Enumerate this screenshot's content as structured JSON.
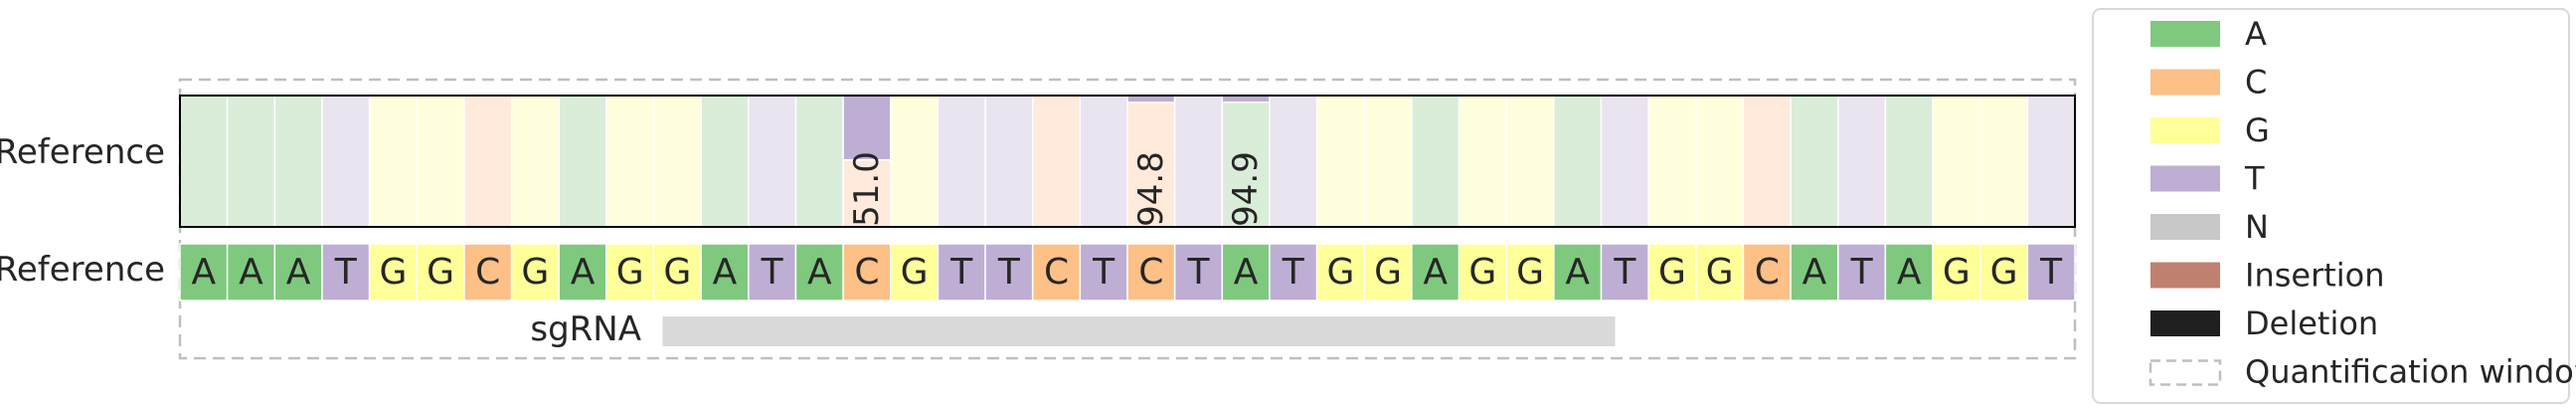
{
  "chart_data": {
    "type": "heatmap",
    "row_labels": [
      "Reference",
      "Reference"
    ],
    "sequence": [
      "A",
      "A",
      "A",
      "T",
      "G",
      "G",
      "C",
      "G",
      "A",
      "G",
      "G",
      "A",
      "T",
      "A",
      "C",
      "G",
      "T",
      "T",
      "C",
      "T",
      "C",
      "T",
      "A",
      "T",
      "G",
      "G",
      "A",
      "G",
      "G",
      "A",
      "T",
      "G",
      "G",
      "C",
      "A",
      "T",
      "A",
      "G",
      "G",
      "T"
    ],
    "substitution_percent": [
      null,
      null,
      null,
      null,
      null,
      null,
      null,
      null,
      null,
      null,
      null,
      null,
      null,
      null,
      51.0,
      null,
      null,
      null,
      null,
      null,
      94.8,
      null,
      94.9,
      null,
      null,
      null,
      null,
      null,
      null,
      null,
      null,
      null,
      null,
      null,
      null,
      null,
      null,
      null,
      null,
      null
    ],
    "substitution_base": [
      null,
      null,
      null,
      null,
      null,
      null,
      null,
      null,
      null,
      null,
      null,
      null,
      null,
      null,
      "T",
      null,
      null,
      null,
      null,
      null,
      "T",
      null,
      "T",
      null,
      null,
      null,
      null,
      null,
      null,
      null,
      null,
      null,
      null,
      null,
      null,
      null,
      null,
      null,
      null,
      null
    ],
    "sgrna": {
      "label": "sgRNA",
      "start_index": 10,
      "end_index": 30
    },
    "quantification_window": true
  },
  "legend": {
    "placement": "right",
    "entries": [
      {
        "label": "A",
        "color": "#7FC97F",
        "style": "fill"
      },
      {
        "label": "C",
        "color": "#FDC086",
        "style": "fill"
      },
      {
        "label": "G",
        "color": "#FFFF99",
        "style": "fill"
      },
      {
        "label": "T",
        "color": "#BEAED4",
        "style": "fill"
      },
      {
        "label": "N",
        "color": "#C8C8C8",
        "style": "fill"
      },
      {
        "label": "Insertion",
        "color": "#C08070",
        "style": "fill"
      },
      {
        "label": "Deletion",
        "color": "#1F1F1F",
        "style": "fill"
      },
      {
        "label": "Quantification window",
        "color": "#BFBFBF",
        "style": "dashed"
      }
    ]
  },
  "colors": {
    "A": "#7FC97F",
    "C": "#FDC086",
    "G": "#FFFF99",
    "T": "#BEAED4",
    "light_A": "#D9EDD9",
    "light_C": "#FFEADB",
    "light_G": "#FFFFDD",
    "light_T": "#EAE3F0",
    "sgrna_bar": "#D9D9D9",
    "window": "#BFBFBF"
  }
}
